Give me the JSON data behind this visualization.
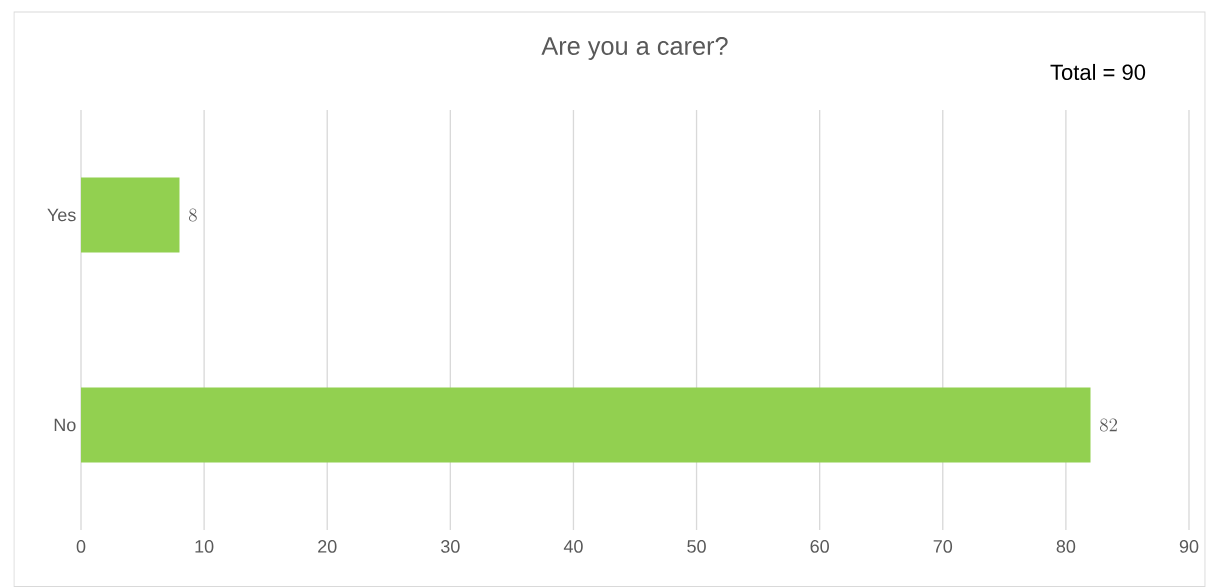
{
  "chart_data": {
    "type": "bar",
    "orientation": "horizontal",
    "title": "Are you a carer?",
    "categories": [
      "Yes",
      "No"
    ],
    "values": [
      8,
      82
    ],
    "color": "#92d050",
    "xlim": [
      0,
      90
    ],
    "xticks": [
      0,
      10,
      20,
      30,
      40,
      50,
      60,
      70,
      80,
      90
    ],
    "grid": "x",
    "data_labels": true,
    "annotations": [
      "Total = 90"
    ]
  }
}
